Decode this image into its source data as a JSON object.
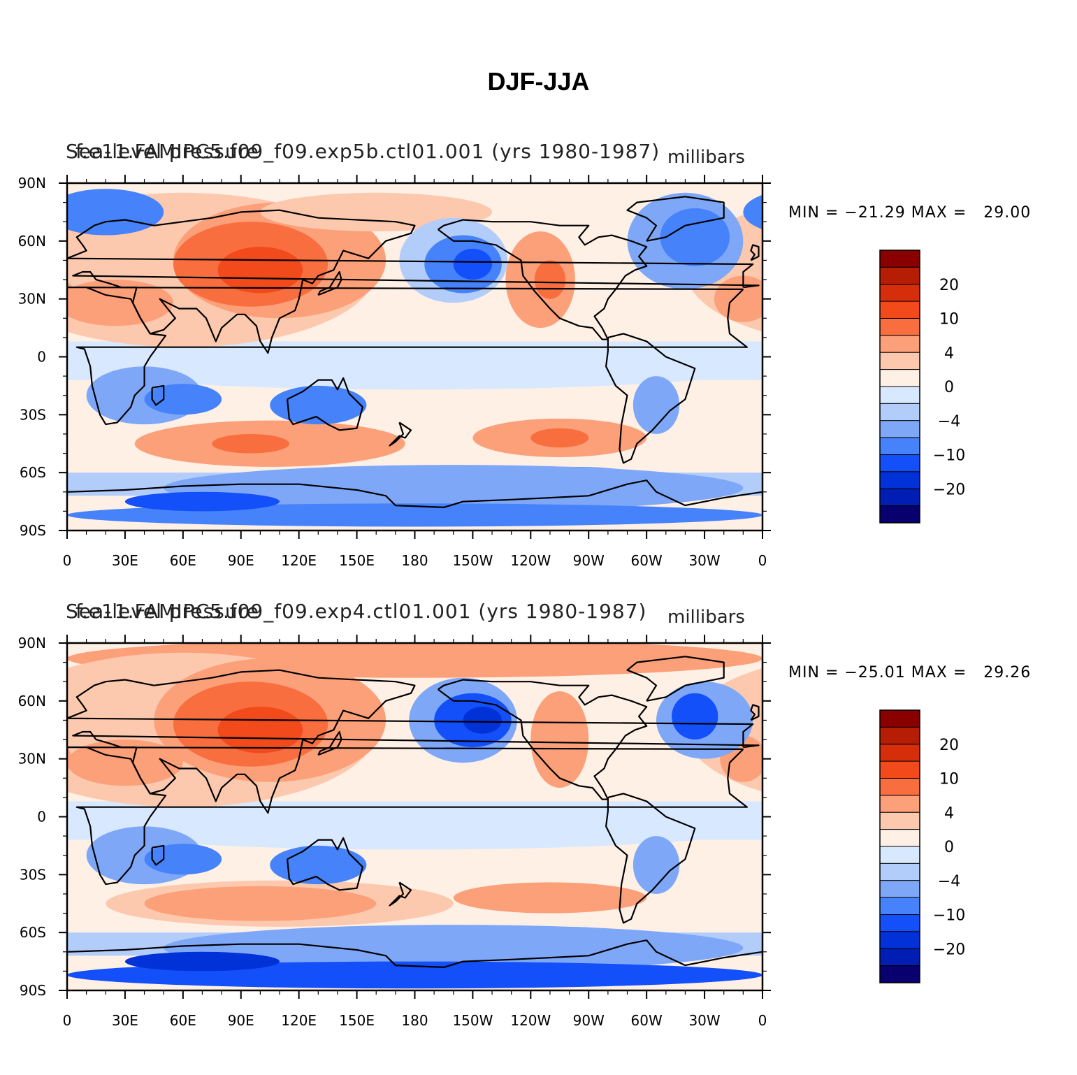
{
  "title": "DJF-JJA",
  "colors": {
    "scale": [
      "#08006e",
      "#001eb4",
      "#0032d7",
      "#1450fa",
      "#4682fa",
      "#7ea8f7",
      "#b3cdfb",
      "#d8e8ff",
      "#fff0e6",
      "#fcc9ae",
      "#fca07a",
      "#f96e3f",
      "#f24a1b",
      "#d62e0a",
      "#b51e04",
      "#8a0000"
    ],
    "coast": "#000000"
  },
  "chart_data": [
    {
      "type": "heatmap",
      "variable": "Sea-level pressure",
      "case": "f.e11.FAMIPC5.f09_f09.exp5b.ctl01.001 (yrs 1980-1987)",
      "units": "millibars",
      "min_label": "MIN = −21.29",
      "max_label": "MAX =   29.00",
      "min": -21.29,
      "max": 29.0,
      "x_ticks": [
        "0",
        "30E",
        "60E",
        "90E",
        "120E",
        "150E",
        "180",
        "150W",
        "120W",
        "90W",
        "60W",
        "30W",
        "0"
      ],
      "y_ticks": [
        "90N",
        "60N",
        "30N",
        "0",
        "30S",
        "60S",
        "90S"
      ],
      "colorbar_labels": [
        "20",
        "10",
        "4",
        "0",
        "−4",
        "−10",
        "−20"
      ],
      "colorbar_levels": [
        -25,
        -20,
        -15,
        -10,
        -6,
        -4,
        -2,
        0,
        2,
        4,
        6,
        10,
        15,
        20,
        25
      ]
    },
    {
      "type": "heatmap",
      "variable": "Sea-level pressure",
      "case": "f.e11.FAMIPC5.f09_f09.exp4.ctl01.001 (yrs 1980-1987)",
      "units": "millibars",
      "min_label": "MIN = −25.01",
      "max_label": "MAX =   29.26",
      "min": -25.01,
      "max": 29.26,
      "x_ticks": [
        "0",
        "30E",
        "60E",
        "90E",
        "120E",
        "150E",
        "180",
        "150W",
        "120W",
        "90W",
        "60W",
        "30W",
        "0"
      ],
      "y_ticks": [
        "90N",
        "60N",
        "30N",
        "0",
        "30S",
        "60S",
        "90S"
      ],
      "colorbar_labels": [
        "20",
        "10",
        "4",
        "0",
        "−4",
        "−10",
        "−20"
      ],
      "colorbar_levels": [
        -25,
        -20,
        -15,
        -10,
        -6,
        -4,
        -2,
        0,
        2,
        4,
        6,
        10,
        15,
        20,
        25
      ]
    }
  ]
}
